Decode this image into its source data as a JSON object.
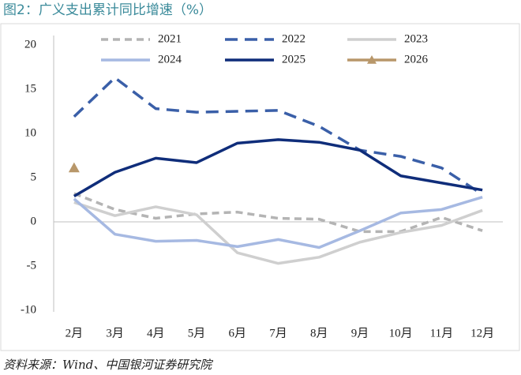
{
  "chart_data": {
    "type": "line",
    "title": "图2：广义支出累计同比增速（%）",
    "source": "资料来源：Wind、中国银河证券研究院",
    "categories": [
      "2月",
      "3月",
      "4月",
      "5月",
      "6月",
      "7月",
      "8月",
      "9月",
      "10月",
      "11月",
      "12月"
    ],
    "ylim": [
      -10,
      20
    ],
    "yticks": [
      -10,
      -5,
      0,
      5,
      10,
      15,
      20
    ],
    "grid": false,
    "legend": "top",
    "series": [
      {
        "name": "2021",
        "color": "#b4b4b4",
        "line_style": "dashed",
        "values": [
          3.2,
          1.4,
          0.4,
          0.9,
          1.1,
          0.4,
          0.3,
          -1.1,
          -1.1,
          0.5,
          -1.0
        ]
      },
      {
        "name": "2022",
        "color": "#3a5fa8",
        "line_style": "dashed",
        "values": [
          11.9,
          16.3,
          12.8,
          12.4,
          12.5,
          12.6,
          10.8,
          8.1,
          7.4,
          6.1,
          3.1
        ]
      },
      {
        "name": "2023",
        "color": "#cfcfcf",
        "line_style": "solid",
        "values": [
          2.2,
          0.7,
          1.7,
          0.8,
          -3.5,
          -4.7,
          -4.0,
          -2.3,
          -1.2,
          -0.4,
          1.3
        ]
      },
      {
        "name": "2024",
        "color": "#a6b9e2",
        "line_style": "solid",
        "values": [
          2.6,
          -1.4,
          -2.2,
          -2.1,
          -2.8,
          -2.0,
          -2.9,
          -1.0,
          1.0,
          1.4,
          2.8
        ]
      },
      {
        "name": "2025",
        "color": "#0f2d7a",
        "line_style": "solid",
        "values": [
          2.9,
          5.6,
          7.2,
          6.7,
          8.9,
          9.3,
          9.0,
          8.1,
          5.2,
          4.4,
          3.6
        ]
      },
      {
        "name": "2026",
        "color": "#b8976a",
        "line_style": "solid",
        "marker": "triangle",
        "values": [
          6.1,
          null,
          null,
          null,
          null,
          null,
          null,
          null,
          null,
          null,
          null
        ]
      }
    ]
  }
}
